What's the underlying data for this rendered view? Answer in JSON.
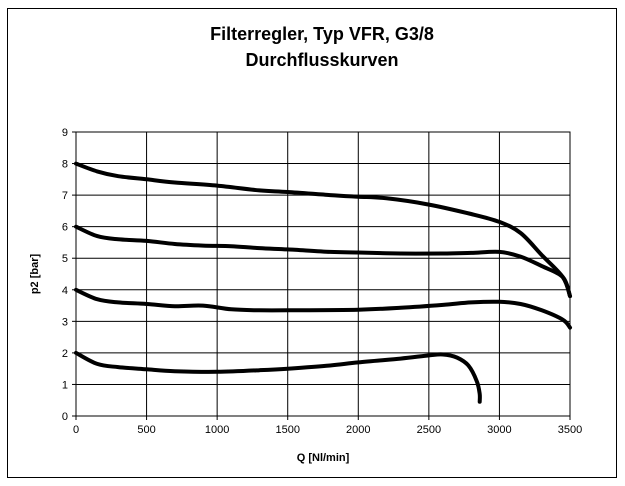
{
  "chart_data": {
    "type": "line",
    "title": "Filterregler, Typ VFR, G3/8",
    "subtitle": "Durchflusskurven",
    "xlabel": "Q [Nl/min]",
    "ylabel": "p2 [bar]",
    "xlim": [
      0,
      3500
    ],
    "ylim": [
      0,
      9
    ],
    "x_ticks": [
      0,
      500,
      1000,
      1500,
      2000,
      2500,
      3000,
      3500
    ],
    "y_ticks": [
      0,
      1,
      2,
      3,
      4,
      5,
      6,
      7,
      8,
      9
    ],
    "grid": true,
    "legend": "none",
    "line_color": "#000000",
    "series": [
      {
        "x": [
          0,
          150,
          300,
          500,
          700,
          1000,
          1300,
          1500,
          1800,
          2000,
          2200,
          2500,
          2800,
          3000,
          3150,
          3300,
          3450,
          3500
        ],
        "y": [
          8.0,
          7.75,
          7.6,
          7.5,
          7.4,
          7.3,
          7.15,
          7.1,
          7.0,
          6.95,
          6.9,
          6.7,
          6.4,
          6.15,
          5.8,
          5.1,
          4.4,
          3.8
        ]
      },
      {
        "x": [
          0,
          150,
          300,
          500,
          700,
          900,
          1100,
          1300,
          1500,
          1800,
          2000,
          2300,
          2600,
          2800,
          3000,
          3150,
          3300,
          3450,
          3500
        ],
        "y": [
          6.0,
          5.7,
          5.6,
          5.55,
          5.45,
          5.4,
          5.38,
          5.32,
          5.28,
          5.2,
          5.18,
          5.15,
          5.15,
          5.17,
          5.2,
          5.05,
          4.75,
          4.4,
          3.8
        ]
      },
      {
        "x": [
          0,
          150,
          300,
          500,
          700,
          900,
          1100,
          1300,
          1500,
          2000,
          2300,
          2600,
          2800,
          3000,
          3150,
          3300,
          3450,
          3500
        ],
        "y": [
          4.0,
          3.7,
          3.6,
          3.55,
          3.48,
          3.5,
          3.38,
          3.35,
          3.35,
          3.37,
          3.43,
          3.52,
          3.6,
          3.62,
          3.55,
          3.35,
          3.05,
          2.8
        ]
      },
      {
        "x": [
          0,
          150,
          300,
          500,
          700,
          1000,
          1300,
          1500,
          1800,
          2000,
          2300,
          2500,
          2600,
          2700,
          2780,
          2840,
          2860,
          2860
        ],
        "y": [
          2.0,
          1.65,
          1.55,
          1.48,
          1.42,
          1.4,
          1.45,
          1.5,
          1.6,
          1.7,
          1.82,
          1.92,
          1.95,
          1.85,
          1.6,
          1.1,
          0.7,
          0.45
        ]
      }
    ]
  }
}
